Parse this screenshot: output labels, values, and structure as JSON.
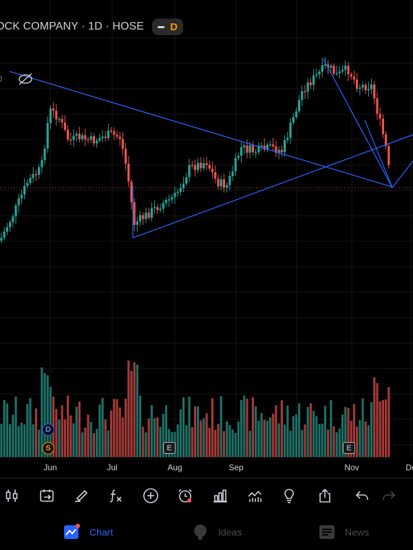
{
  "header": {
    "symbol_title": "OCK COMPANY · 1D · HOSE",
    "badge_letter": "D"
  },
  "price_axis_partial_label": "0",
  "months": [
    "Jun",
    "Jul",
    "Aug",
    "Sep",
    "Nov",
    "De"
  ],
  "markers": {
    "dividend_letter": "D",
    "split_letter": "S",
    "earnings_letter": "E"
  },
  "colors": {
    "up": "#26a69a",
    "down": "#ef5350",
    "trendline": "#2962ff",
    "accent_orange": "#ff9800",
    "background": "#000000"
  },
  "toolbar": {
    "tools": [
      "candles-icon",
      "replay-icon",
      "draw-icon",
      "indicators-fx-icon",
      "add-icon",
      "alert-icon",
      "bar-chart-icon",
      "compare-icon",
      "idea-bulb-icon",
      "share-icon",
      "undo-icon",
      "redo-icon"
    ]
  },
  "nav": {
    "chart_label": "Chart",
    "ideas_label": "Ideas",
    "news_label": "News"
  }
}
